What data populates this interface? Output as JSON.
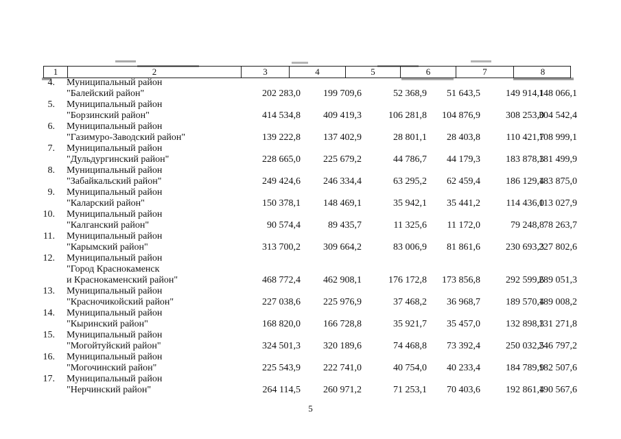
{
  "page": {
    "number": "5"
  },
  "table": {
    "header": [
      "1",
      "2",
      "3",
      "4",
      "5",
      "6",
      "7",
      "8"
    ],
    "rows": [
      {
        "num": "4.",
        "name_lines": [
          "Муниципальный район",
          "\"Балейский район\""
        ],
        "values": [
          "202 283,0",
          "199 709,6",
          "52 368,9",
          "51 643,5",
          "149 914,1",
          "148 066,1"
        ]
      },
      {
        "num": "5.",
        "name_lines": [
          "Муниципальный район",
          "\"Борзинский район\""
        ],
        "values": [
          "414 534,8",
          "409 419,3",
          "106 281,8",
          "104 876,9",
          "308 253,0",
          "304 542,4"
        ]
      },
      {
        "num": "6.",
        "name_lines": [
          "Муниципальный район",
          "\"Газимуро-Заводский район\""
        ],
        "values": [
          "139 222,8",
          "137 402,9",
          "28 801,1",
          "28 403,8",
          "110 421,7",
          "108 999,1"
        ]
      },
      {
        "num": "7.",
        "name_lines": [
          "Муниципальный район",
          "\"Дульдургинский район\""
        ],
        "values": [
          "228 665,0",
          "225 679,2",
          "44 786,7",
          "44 179,3",
          "183 878,3",
          "181 499,9"
        ]
      },
      {
        "num": "8.",
        "name_lines": [
          "Муниципальный район",
          "\"Забайкальский район\""
        ],
        "values": [
          "249 424,6",
          "246 334,4",
          "63 295,2",
          "62 459,4",
          "186 129,4",
          "183 875,0"
        ]
      },
      {
        "num": "9.",
        "name_lines": [
          "Муниципальный район",
          "\"Каларский район\""
        ],
        "values": [
          "150 378,1",
          "148 469,1",
          "35 942,1",
          "35 441,2",
          "114 436,0",
          "113 027,9"
        ]
      },
      {
        "num": "10.",
        "name_lines": [
          "Муниципальный район",
          "\"Калганский район\""
        ],
        "values": [
          "90 574,4",
          "89 435,7",
          "11 325,6",
          "11 172,0",
          "79 248,8",
          "78 263,7"
        ]
      },
      {
        "num": "11.",
        "name_lines": [
          "Муниципальный район",
          "\"Карымский район\""
        ],
        "values": [
          "313 700,2",
          "309 664,2",
          "83 006,9",
          "81 861,6",
          "230 693,3",
          "227 802,6"
        ]
      },
      {
        "num": "12.",
        "name_lines": [
          "Муниципальный район",
          "\"Город Краснокаменск",
          "и Краснокаменский район\""
        ],
        "values": [
          "468 772,4",
          "462 908,1",
          "176 172,8",
          "173 856,8",
          "292 599,6",
          "289 051,3"
        ]
      },
      {
        "num": "13.",
        "name_lines": [
          "Муниципальный район",
          "\"Красночикойский район\""
        ],
        "values": [
          "227 038,6",
          "225 976,9",
          "37 468,2",
          "36 968,7",
          "189 570,4",
          "189 008,2"
        ]
      },
      {
        "num": "14.",
        "name_lines": [
          "Муниципальный район",
          "\"Кыринский район\""
        ],
        "values": [
          "168 820,0",
          "166 728,8",
          "35 921,7",
          "35 457,0",
          "132 898,3",
          "131 271,8"
        ]
      },
      {
        "num": "15.",
        "name_lines": [
          "Муниципальный район",
          "\"Могойтуйский район\""
        ],
        "values": [
          "324 501,3",
          "320 189,6",
          "74 468,8",
          "73 392,4",
          "250 032,5",
          "246 797,2"
        ]
      },
      {
        "num": "16.",
        "name_lines": [
          "Муниципальный район",
          "\"Могочинский район\""
        ],
        "values": [
          "225 543,9",
          "222 741,0",
          "40 754,0",
          "40 233,4",
          "184 789,9",
          "182 507,6"
        ]
      },
      {
        "num": "17.",
        "name_lines": [
          "Муниципальный район",
          "\"Нерчинский район\""
        ],
        "values": [
          "264 114,5",
          "260 971,2",
          "71 253,1",
          "70 403,6",
          "192 861,4",
          "190 567,6"
        ]
      }
    ]
  }
}
